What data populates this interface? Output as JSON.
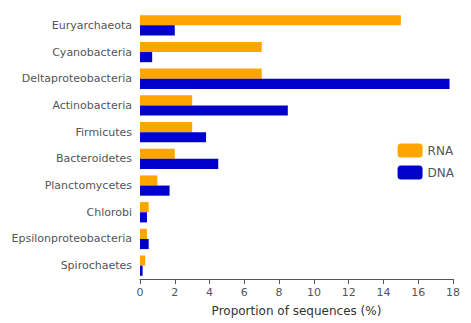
{
  "chart_data": {
    "type": "bar",
    "orientation": "horizontal",
    "categories": [
      "Euryarchaeota",
      "Cyanobacteria",
      "Deltaproteobacteria",
      "Actinobacteria",
      "Firmicutes",
      "Bacteroidetes",
      "Planctomycetes",
      "Chlorobi",
      "Epsilonproteobacteria",
      "Spirochaetes"
    ],
    "series": [
      {
        "name": "RNA",
        "color": "#FFA500",
        "values": [
          15.0,
          7.0,
          7.0,
          3.0,
          3.0,
          2.0,
          1.0,
          0.5,
          0.4,
          0.3
        ]
      },
      {
        "name": "DNA",
        "color": "#0000CC",
        "values": [
          2.0,
          0.7,
          17.8,
          8.5,
          3.8,
          4.5,
          1.7,
          0.4,
          0.5,
          0.15
        ]
      }
    ],
    "xlabel": "Proportion of sequences (%)",
    "xlim": [
      0,
      18
    ],
    "xticks": [
      0,
      2,
      4,
      6,
      8,
      10,
      12,
      14,
      16,
      18
    ],
    "legend": "right",
    "grid": false
  }
}
